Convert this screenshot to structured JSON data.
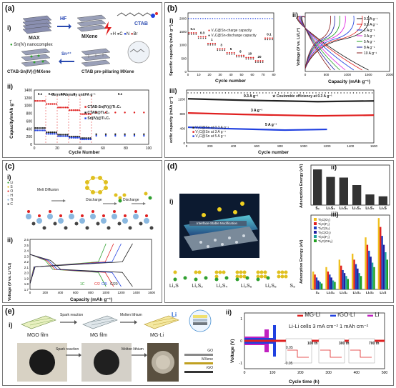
{
  "panel_a": {
    "label": "(a)",
    "sub_i": "i)",
    "sub_ii": "ii)",
    "max_label": "MAX",
    "hf_label": "HF",
    "mxene_label": "MXene",
    "ctab_label": "CTAB",
    "legend_atoms": [
      "H",
      "C",
      "N",
      "Br"
    ],
    "sn_complex": "Sn(IV) nanocomplex",
    "sn4": "Sn⁴⁺",
    "product_label": "CTAB-Sn(IV)@MXene",
    "prepillar_label": "CTAB pre-pillaring MXene",
    "ylabel": "Capacity/mAh g⁻¹",
    "xlabel": "Cycle Number",
    "rate_text": "current density unit: A g⁻¹",
    "rates": [
      "0.1",
      "0.25",
      "0.5",
      "1",
      "3",
      "0.1"
    ],
    "series": [
      "CTAB-Sn(IV)@Ti₃C₂",
      "CTAB@Ti₃C₂",
      "Sn(IV)@Ti₃C₂"
    ],
    "yticks": [
      "0",
      "200",
      "400",
      "600",
      "800",
      "1000",
      "1200",
      "1400"
    ],
    "xticks": [
      "0",
      "20",
      "40",
      "60",
      "80",
      "100"
    ]
  },
  "panel_b": {
    "label": "(b)",
    "sub_i": "i)",
    "sub_ii": "ii)",
    "sub_iii": "iii)",
    "i_ylabel": "Specific capacity (mAh g⁻¹)",
    "i_y2label": "Coulombic Efficiency (%)",
    "i_xlabel": "Cycle number",
    "i_legend": [
      "V₂C@Sn-charge capacity",
      "V₂C@Sn-discharge capacity"
    ],
    "i_rates": [
      "0.1",
      "0.3",
      "1",
      "3",
      "5",
      "8",
      "10",
      "20",
      "0.1"
    ],
    "i_yticks": [
      "0",
      "500",
      "1000",
      "1500",
      "2000"
    ],
    "i_xticks": [
      "0",
      "10",
      "20",
      "30",
      "40",
      "50",
      "60",
      "70",
      "80"
    ],
    "ii_ylabel": "Voltage (V vs. Li/Li⁺)",
    "ii_xlabel": "Capacity (mAh g⁻¹)",
    "ii_legend": [
      "0.1 A g⁻¹",
      "0.3 A g⁻¹",
      "1 A g⁻¹",
      "3 A g⁻¹",
      "5 A g⁻¹",
      "8 A g⁻¹",
      "10 A g⁻¹"
    ],
    "ii_colors": [
      "#111111",
      "#e02020",
      "#2040e0",
      "#e020e0",
      "#20a020",
      "#1a1aa0",
      "#8a2020"
    ],
    "ii_xticks": [
      "0",
      "500",
      "1000",
      "1500",
      "2000"
    ],
    "iii_ylabel": "ecific capacity (mAh g⁻¹)",
    "iii_y2label": "Coulombic Efficiency (%)",
    "iii_xlabel": "Cycle number",
    "iii_ce": "Coulombic efficiency at 0.3 A g⁻¹",
    "iii_rates": [
      "0.3 A g⁻¹",
      "3 A g⁻¹",
      "5 A g⁻¹"
    ],
    "iii_legend": [
      "V₂C@Sn at 0.3 A g⁻¹",
      "V₂C@Sn at 3 A g⁻¹",
      "V₂C@Sn at 5 A g⁻¹"
    ],
    "iii_xticks": [
      "0",
      "200",
      "400",
      "600",
      "800",
      "1000",
      "1200",
      "1400",
      "1600"
    ],
    "iii_yticks": [
      "0",
      "400",
      "800",
      "1200"
    ]
  },
  "panel_c": {
    "label": "(c)",
    "sub_i": "i)",
    "sub_ii": "ii)",
    "legend": [
      "Li",
      "S",
      "O",
      "H",
      "Ti",
      "C"
    ],
    "steps": [
      "Melt Diffusion",
      "Discharge",
      "Discharge"
    ],
    "ylabel": "Voltage (V vs. Li⁺/Li)",
    "xlabel": "Capacity (mAh g⁻¹)",
    "rates": [
      "1C",
      "C/2",
      "C/5",
      "C/20"
    ],
    "xticks": [
      "0",
      "200",
      "400",
      "600",
      "800",
      "1000",
      "1200",
      "1400",
      "1600"
    ],
    "yticks": [
      "1.7",
      "1.8",
      "1.9",
      "2.0",
      "2.1",
      "2.2",
      "2.3",
      "2.4",
      "2.5",
      "2.6"
    ]
  },
  "panel_d": {
    "label": "(d)",
    "sub_i": "i)",
    "sub_ii": "ii)",
    "sub_iii": "iii)",
    "banner": "Interface-Stable Modification",
    "species": [
      "Li₂S",
      "Li₂S₂",
      "Li₂S₄",
      "Li₂S₆",
      "Li₂S₈",
      "S₈"
    ],
    "ii_ylabel": "Adsorption Energy (eV)",
    "ii_categories": [
      "S₈",
      "Li₂S₈",
      "Li₂S₆",
      "Li₂S₄",
      "Li₂S₂",
      "Li₂S"
    ],
    "ii_values": [
      2.85,
      2.25,
      2.2,
      1.6,
      0.85,
      0.7
    ],
    "iii_ylabel": "Adsorption Energy (eV)",
    "iii_legend": [
      "Ti₂C(O₂)",
      "Ti₂C(F₂)",
      "Ti₂C(S₂)",
      "Ti₂C(Cl₂)",
      "Ti₂C(F₂)",
      "Ti₂C(OH₂)"
    ],
    "iii_colors": [
      "#f0c020",
      "#e02020",
      "#2040c0",
      "#2020a0",
      "#20a0a0",
      "#20a020"
    ],
    "iii_categories": [
      "S₈",
      "Li₂S₈",
      "Li₂S₆",
      "Li₂S₄",
      "Li₂S₂",
      "Li₂S"
    ]
  },
  "panel_e": {
    "label": "(e)",
    "sub_i": "i)",
    "sub_ii": "ii)",
    "step1": "Spark reaction",
    "step2": "Molten lithium",
    "films": [
      "MGO film",
      "MG film",
      "MG-Li"
    ],
    "li_label": "Li",
    "layers": [
      "GO",
      "MXene",
      "rGO"
    ],
    "photo_steps": [
      "Spark reaction",
      "Molten lithium"
    ],
    "ylabel": "Voltage (V)",
    "xlabel": "Cycle time (h)",
    "legend": [
      "MG-Li",
      "rGO-Li",
      "Li"
    ],
    "conditions": "Li-Li cells    3 mA cm⁻²  1 mAh cm⁻²",
    "insets": [
      "100 th",
      "300 th",
      "700 th"
    ],
    "inset_ticks": [
      "0.05",
      "-0.05"
    ],
    "xticks": [
      "0",
      "100",
      "200",
      "300",
      "400",
      "500"
    ],
    "yticks": [
      "1",
      "0",
      "-1"
    ]
  }
}
